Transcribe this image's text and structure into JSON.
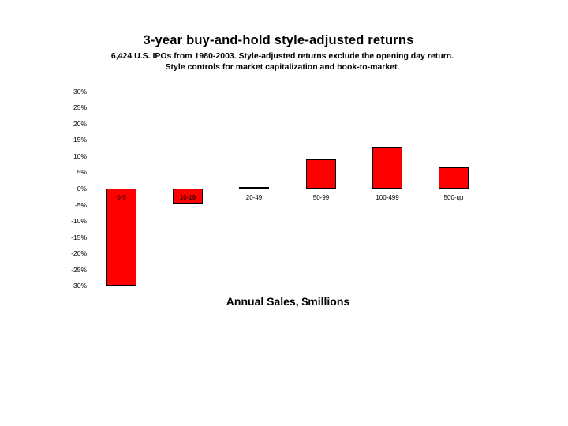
{
  "slide": {
    "title": "3-year buy-and-hold style-adjusted returns",
    "subtitle_line1": "6,424 U.S. IPOs from 1980-2003. Style-adjusted returns exclude the opening day return.",
    "subtitle_line2": "Style controls for market capitalization and book-to-market.",
    "xaxis_title": "Annual Sales, $millions"
  },
  "chart_data": {
    "type": "bar",
    "title": "3-year buy-and-hold style-adjusted returns",
    "subtitle": "6,424 U.S. IPOs from 1980-2003. Style-adjusted returns exclude the opening day return. Style controls for market capitalization and book-to-market.",
    "categories": [
      "0-9",
      "10-19",
      "20-49",
      "50-99",
      "100-499",
      "500-up"
    ],
    "values": [
      -30.0,
      -4.7,
      0.6,
      9.0,
      12.8,
      6.6
    ],
    "xlabel": "Annual Sales, $millions",
    "ylabel": "",
    "ylim": [
      -30,
      30
    ],
    "ytick_step": 5,
    "ytick_labels": [
      "30%",
      "25%",
      "20%",
      "15%",
      "10%",
      "5%",
      "0%",
      "-5%",
      "-10%",
      "-15%",
      "-20%",
      "-25%",
      "-30%"
    ],
    "reference_line_value": 15,
    "grid": false,
    "legend": false,
    "bar_color": "#ff0000",
    "bar_border_color": "#000000",
    "text_color": "#000000",
    "background_color": "#ffffff"
  }
}
